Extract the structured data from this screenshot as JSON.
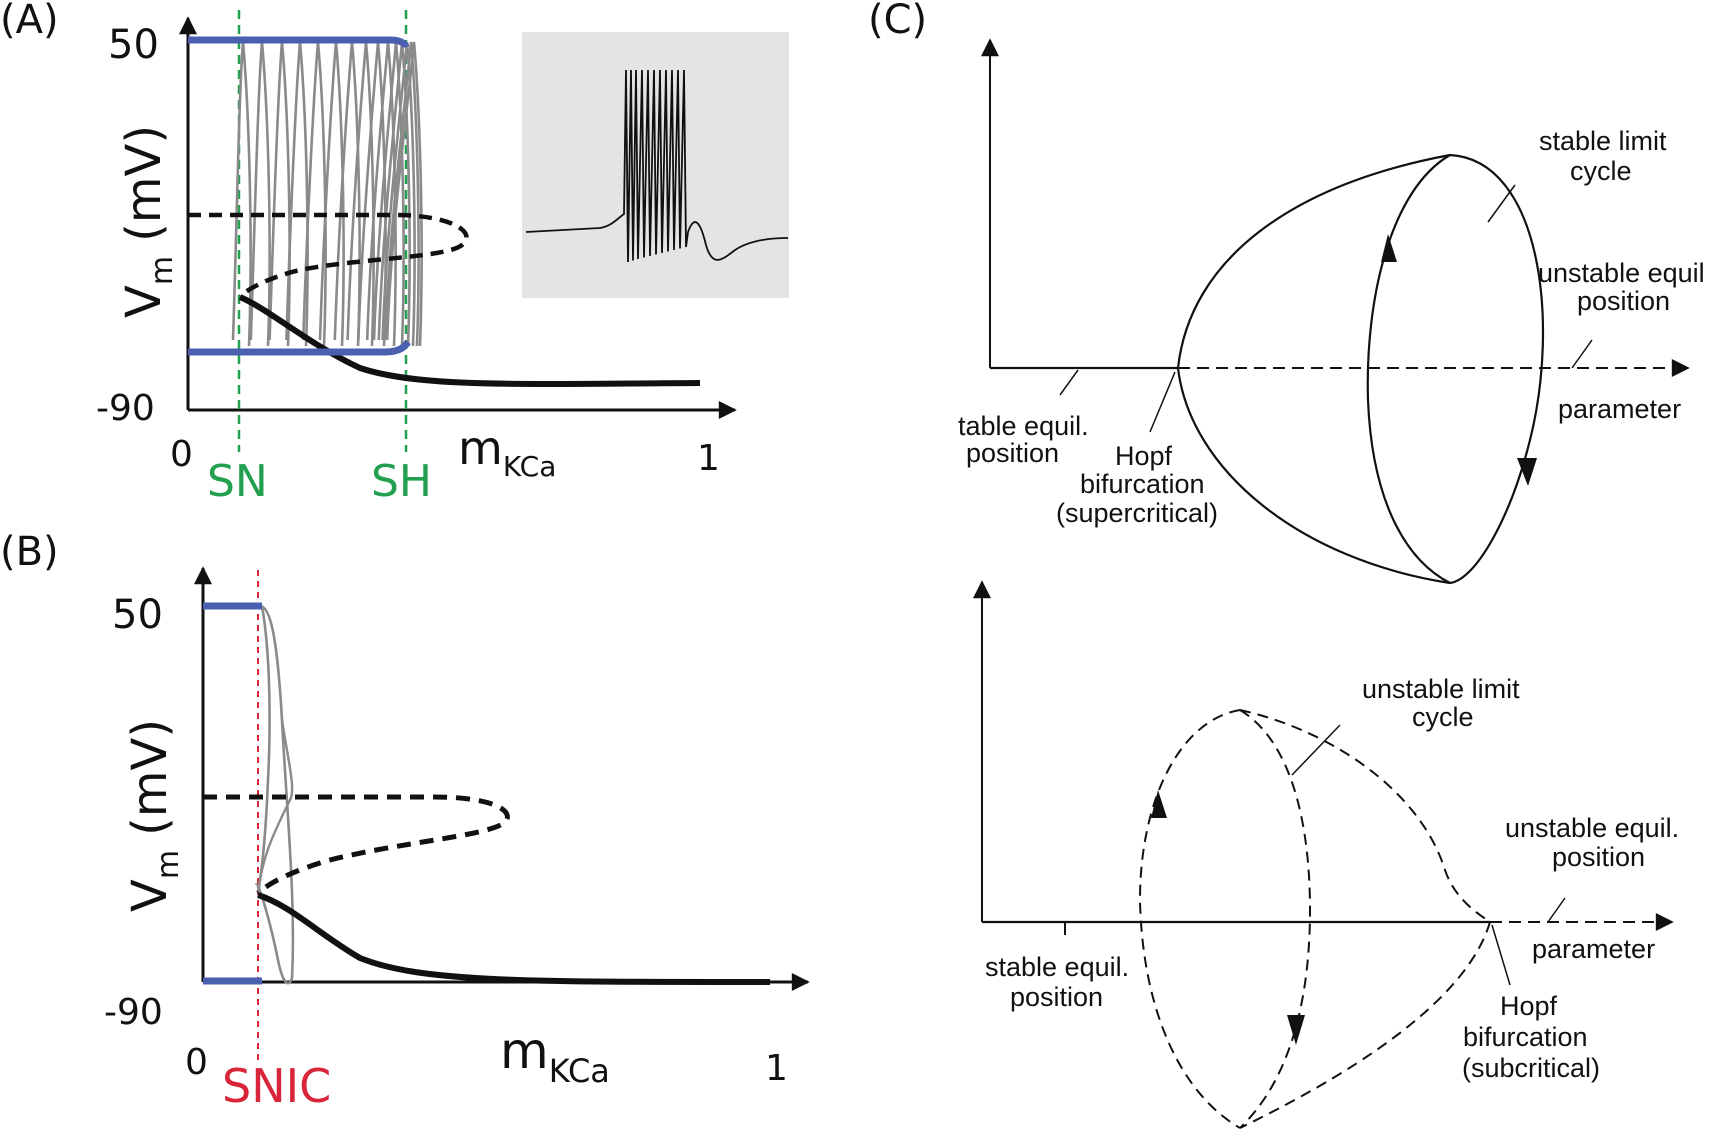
{
  "panels": {
    "a": {
      "label": "(A)",
      "y_top": "50",
      "y_bottom": "-90",
      "x_left": "0",
      "x_right": "1",
      "ylabel_main": "V",
      "ylabel_sub": "m",
      "ylabel_unit": "(mV)",
      "xlabel_main": "m",
      "xlabel_sub": "KCa",
      "marker_sn": "SN",
      "marker_sh": "SH"
    },
    "b": {
      "label": "(B)",
      "y_top": "50",
      "y_bottom": "-90",
      "x_left": "0",
      "x_right": "1",
      "ylabel_main": "V",
      "ylabel_sub": "m",
      "ylabel_unit": "(mV)",
      "xlabel_main": "m",
      "xlabel_sub": "KCa",
      "marker_snic": "SNIC"
    },
    "c": {
      "label": "(C)",
      "top": {
        "stable_limit_1": "stable limit",
        "stable_limit_2": "cycle",
        "unstable_equil_1": "unstable equil",
        "unstable_equil_2": "position",
        "parameter": "parameter",
        "stable_equil_1": "table equil.",
        "stable_equil_2": "position",
        "hopf_1": "Hopf",
        "hopf_2": "bifurcation",
        "hopf_3": "(supercritical)"
      },
      "bottom": {
        "unstable_limit_1": "unstable limit",
        "unstable_limit_2": "cycle",
        "unstable_equil_1": "unstable equil.",
        "unstable_equil_2": "position",
        "parameter": "parameter",
        "stable_equil_1": "stable equil.",
        "stable_equil_2": "position",
        "hopf_1": "Hopf",
        "hopf_2": "bifurcation",
        "hopf_3": "(subcritical)"
      }
    }
  },
  "colors": {
    "stable_branch": "#1a1a1a",
    "limit_cycle_extrema": "#4a5fb0",
    "orbits": "#8a8a8a",
    "sn_sh_marker": "#22a050",
    "snic_marker": "#d8253a",
    "inset_bg": "#e4e4e4"
  }
}
